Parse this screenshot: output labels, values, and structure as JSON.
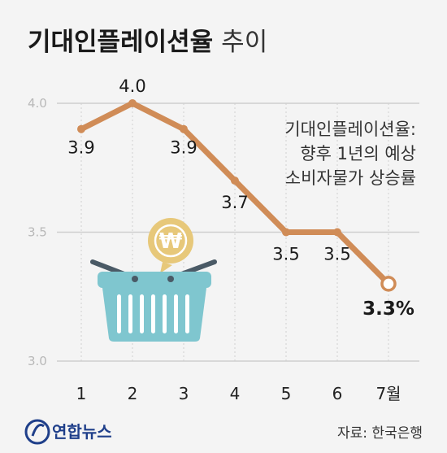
{
  "title": "기대인플레이션율",
  "title_suffix": "추이",
  "annotation": [
    "기대인플레이션율:",
    "향후 1년의 예상",
    "소비자물가 상승률"
  ],
  "source": "자료: 한국은행",
  "logo": "연합뉴스",
  "colors": {
    "line": "#d08c57",
    "marker_last_fill": "#ffffff",
    "grid": "#cfcfcf",
    "basket": "#7fc6cf",
    "coin": "#e7c87a"
  },
  "chart_data": {
    "type": "line",
    "categories": [
      "1",
      "2",
      "3",
      "4",
      "5",
      "6",
      "7월"
    ],
    "series": [
      {
        "values": [
          3.9,
          4.0,
          3.9,
          3.7,
          3.5,
          3.5,
          3.3
        ]
      }
    ],
    "data_labels": [
      "3.9",
      "4.0",
      "3.9",
      "3.7",
      "3.5",
      "3.5",
      "3.3%"
    ],
    "yticks": [
      "4.0",
      "3.5",
      "3.0"
    ],
    "ytick_values": [
      4.0,
      3.5,
      3.0
    ],
    "ylim": [
      3.0,
      4.0
    ],
    "grid": true,
    "legend": "none"
  }
}
